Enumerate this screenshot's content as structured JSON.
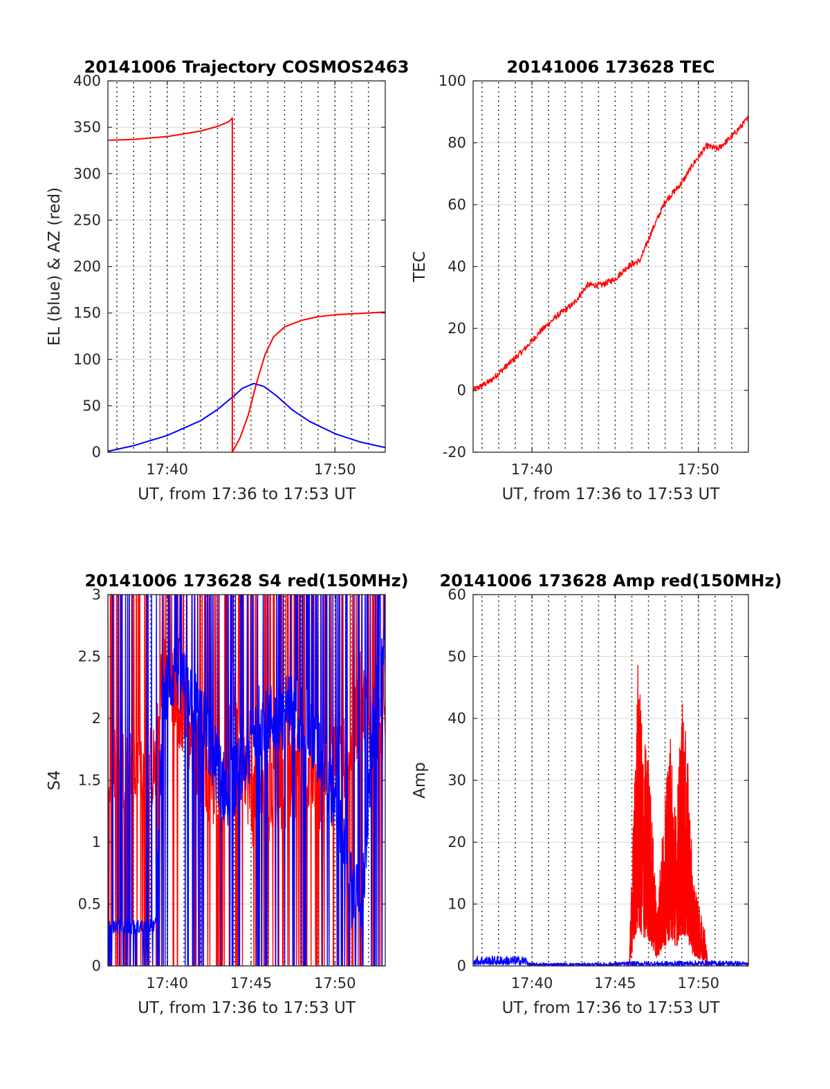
{
  "figure": {
    "width": 1200,
    "height": 1575
  },
  "colors": {
    "red": "#ff0000",
    "blue": "#0000ff",
    "grid": "#dedede",
    "dotted_markers": "#000000"
  },
  "chart_data": [
    {
      "id": "trajectory",
      "type": "line",
      "title": "20141006 Trajectory COSMOS2463",
      "xlabel": "UT, from 17:36 to 17:53 UT",
      "ylabel": "EL (blue) & AZ (red)",
      "xlim": [
        "17:36:28",
        "17:53:00"
      ],
      "ylim": [
        0,
        400
      ],
      "yticks": [
        0,
        50,
        100,
        150,
        200,
        250,
        300,
        350,
        400
      ],
      "xticks": [
        "17:40",
        "17:50"
      ],
      "grid": true,
      "dotted_vlines": [
        "17:37",
        "17:38",
        "17:39",
        "17:40",
        "17:41",
        "17:42",
        "17:43",
        "17:44",
        "17:45",
        "17:46",
        "17:47",
        "17:48",
        "17:49",
        "17:50",
        "17:51",
        "17:52"
      ],
      "series": [
        {
          "color": "#0000ff",
          "x": [
            "17:36:28",
            "17:38:00",
            "17:40:00",
            "17:42:00",
            "17:43:00",
            "17:44:00",
            "17:44:30",
            "17:45:10",
            "17:45:45",
            "17:46:30",
            "17:47:30",
            "17:48:30",
            "17:50:00",
            "17:51:30",
            "17:53:00"
          ],
          "y": [
            1,
            7,
            18,
            34,
            46,
            61,
            69,
            74,
            71,
            61,
            45,
            33,
            20,
            11,
            5
          ]
        },
        {
          "color": "#ff0000",
          "x": [
            "17:36:28",
            "17:38:00",
            "17:40:00",
            "17:42:00",
            "17:43:00",
            "17:43:40",
            "17:43:53",
            "17:43:53",
            "17:44:20",
            "17:44:50",
            "17:45:20",
            "17:45:50",
            "17:46:20",
            "17:47:00",
            "17:48:00",
            "17:49:00",
            "17:50:00",
            "17:51:00",
            "17:52:00",
            "17:53:00"
          ],
          "y": [
            336,
            337,
            340,
            346,
            351,
            356,
            360,
            0,
            15,
            40,
            75,
            105,
            124,
            135,
            142,
            146,
            148,
            149,
            150,
            151
          ]
        }
      ]
    },
    {
      "id": "tec",
      "type": "line",
      "title": "20141006 173628 TEC",
      "xlabel": "UT, from 17:36 to 17:53 UT",
      "ylabel": "TEC",
      "xlim": [
        "17:36:28",
        "17:53:00"
      ],
      "ylim": [
        -20,
        100
      ],
      "yticks": [
        -20,
        0,
        20,
        40,
        60,
        80,
        100
      ],
      "xticks": [
        "17:40",
        "17:50"
      ],
      "grid": true,
      "dotted_vlines": [
        "17:37",
        "17:38",
        "17:39",
        "17:40",
        "17:41",
        "17:42",
        "17:43",
        "17:44",
        "17:45",
        "17:46",
        "17:47",
        "17:48",
        "17:49",
        "17:50",
        "17:51",
        "17:52"
      ],
      "series": [
        {
          "color": "#ff0000",
          "noise": 1.0,
          "x": [
            "17:36:28",
            "17:37:30",
            "17:38:30",
            "17:39:30",
            "17:40:30",
            "17:41:30",
            "17:42:30",
            "17:43:20",
            "17:44:10",
            "17:45:00",
            "17:45:45",
            "17:46:30",
            "17:47:10",
            "17:48:00",
            "17:49:00",
            "17:49:40",
            "17:50:30",
            "17:51:10",
            "17:52:00",
            "17:53:00"
          ],
          "y": [
            0,
            3,
            8,
            13,
            19,
            24,
            28,
            34,
            34,
            36,
            40,
            42,
            51,
            61,
            67,
            73,
            79,
            78,
            82,
            88
          ]
        }
      ]
    },
    {
      "id": "s4",
      "type": "line",
      "title": "20141006 173628 S4 red(150MHz)",
      "xlabel": "UT, from 17:36 to 17:53 UT",
      "ylabel": "S4",
      "xlim": [
        "17:36:28",
        "17:53:00"
      ],
      "ylim": [
        0,
        3
      ],
      "yticks": [
        0,
        0.5,
        1,
        1.5,
        2,
        2.5,
        3
      ],
      "xticks": [
        "17:40",
        "17:45",
        "17:50"
      ],
      "grid": true,
      "dotted_vlines": [
        "17:37",
        "17:38",
        "17:39",
        "17:40",
        "17:41",
        "17:42",
        "17:43",
        "17:44",
        "17:45",
        "17:46",
        "17:47",
        "17:48",
        "17:49",
        "17:50",
        "17:51",
        "17:52"
      ],
      "series": [
        {
          "color": "#ff0000",
          "noise": 0.35,
          "x": [
            "17:36:28",
            "17:38:00",
            "17:39:20",
            "17:39:40",
            "17:40:30",
            "17:41:30",
            "17:42:30",
            "17:43:30",
            "17:44:00",
            "17:45:00",
            "17:46:00",
            "17:47:00",
            "17:48:00",
            "17:49:00",
            "17:50:00",
            "17:51:00",
            "17:51:30",
            "17:52:00",
            "17:53:00"
          ],
          "y": [
            1.6,
            1.6,
            1.6,
            2.4,
            2.2,
            1.8,
            1.5,
            1.4,
            2.3,
            1.3,
            1.3,
            1.4,
            1.6,
            1.4,
            1.7,
            1.7,
            2.2,
            2.0,
            2.0
          ]
        },
        {
          "color": "#0000ff",
          "noise": 0.3,
          "x": [
            "17:36:28",
            "17:38:00",
            "17:39:20",
            "17:39:40",
            "17:40:30",
            "17:41:30",
            "17:42:30",
            "17:43:30",
            "17:44:30",
            "17:45:30",
            "17:46:30",
            "17:47:30",
            "17:48:30",
            "17:49:30",
            "17:50:30",
            "17:51:00",
            "17:51:40",
            "17:52:20",
            "17:53:00"
          ],
          "y": [
            0.33,
            0.31,
            0.33,
            2.1,
            2.4,
            2.2,
            1.8,
            1.4,
            1.6,
            2.0,
            2.0,
            2.1,
            1.9,
            1.6,
            1.0,
            0.6,
            0.6,
            2.0,
            2.5
          ]
        }
      ]
    },
    {
      "id": "amp",
      "type": "line",
      "title": "20141006 173628 Amp red(150MHz)",
      "xlabel": "UT, from 17:36 to 17:53 UT",
      "ylabel": "Amp",
      "xlim": [
        "17:36:28",
        "17:53:00"
      ],
      "ylim": [
        0,
        60
      ],
      "yticks": [
        0,
        10,
        20,
        30,
        40,
        50,
        60
      ],
      "xticks": [
        "17:40",
        "17:45",
        "17:50"
      ],
      "grid": true,
      "dotted_vlines": [
        "17:37",
        "17:38",
        "17:39",
        "17:40",
        "17:41",
        "17:42",
        "17:43",
        "17:44",
        "17:45",
        "17:46",
        "17:47",
        "17:48",
        "17:49",
        "17:50",
        "17:51",
        "17:52"
      ],
      "series": [
        {
          "color": "#ff0000",
          "spiky": true,
          "x": [
            "17:45:50",
            "17:46:10",
            "17:46:20",
            "17:46:40",
            "17:47:00",
            "17:47:30",
            "17:48:00",
            "17:48:20",
            "17:48:40",
            "17:49:00",
            "17:49:20",
            "17:49:40",
            "17:50:00",
            "17:50:20",
            "17:50:35"
          ],
          "y": [
            0,
            25,
            40,
            30,
            28,
            8,
            22,
            30,
            20,
            35,
            28,
            12,
            8,
            6,
            0
          ]
        },
        {
          "color": "#0000ff",
          "spiky": true,
          "x": [
            "17:36:30",
            "17:38:00",
            "17:39:40",
            "17:39:50",
            "17:42:00",
            "17:44:00",
            "17:46:00",
            "17:48:00",
            "17:50:00",
            "17:52:00",
            "17:53:00"
          ],
          "y": [
            1.3,
            1.3,
            1.3,
            0.4,
            0.4,
            0.4,
            0.6,
            0.6,
            0.7,
            0.7,
            0.5
          ]
        }
      ]
    }
  ]
}
